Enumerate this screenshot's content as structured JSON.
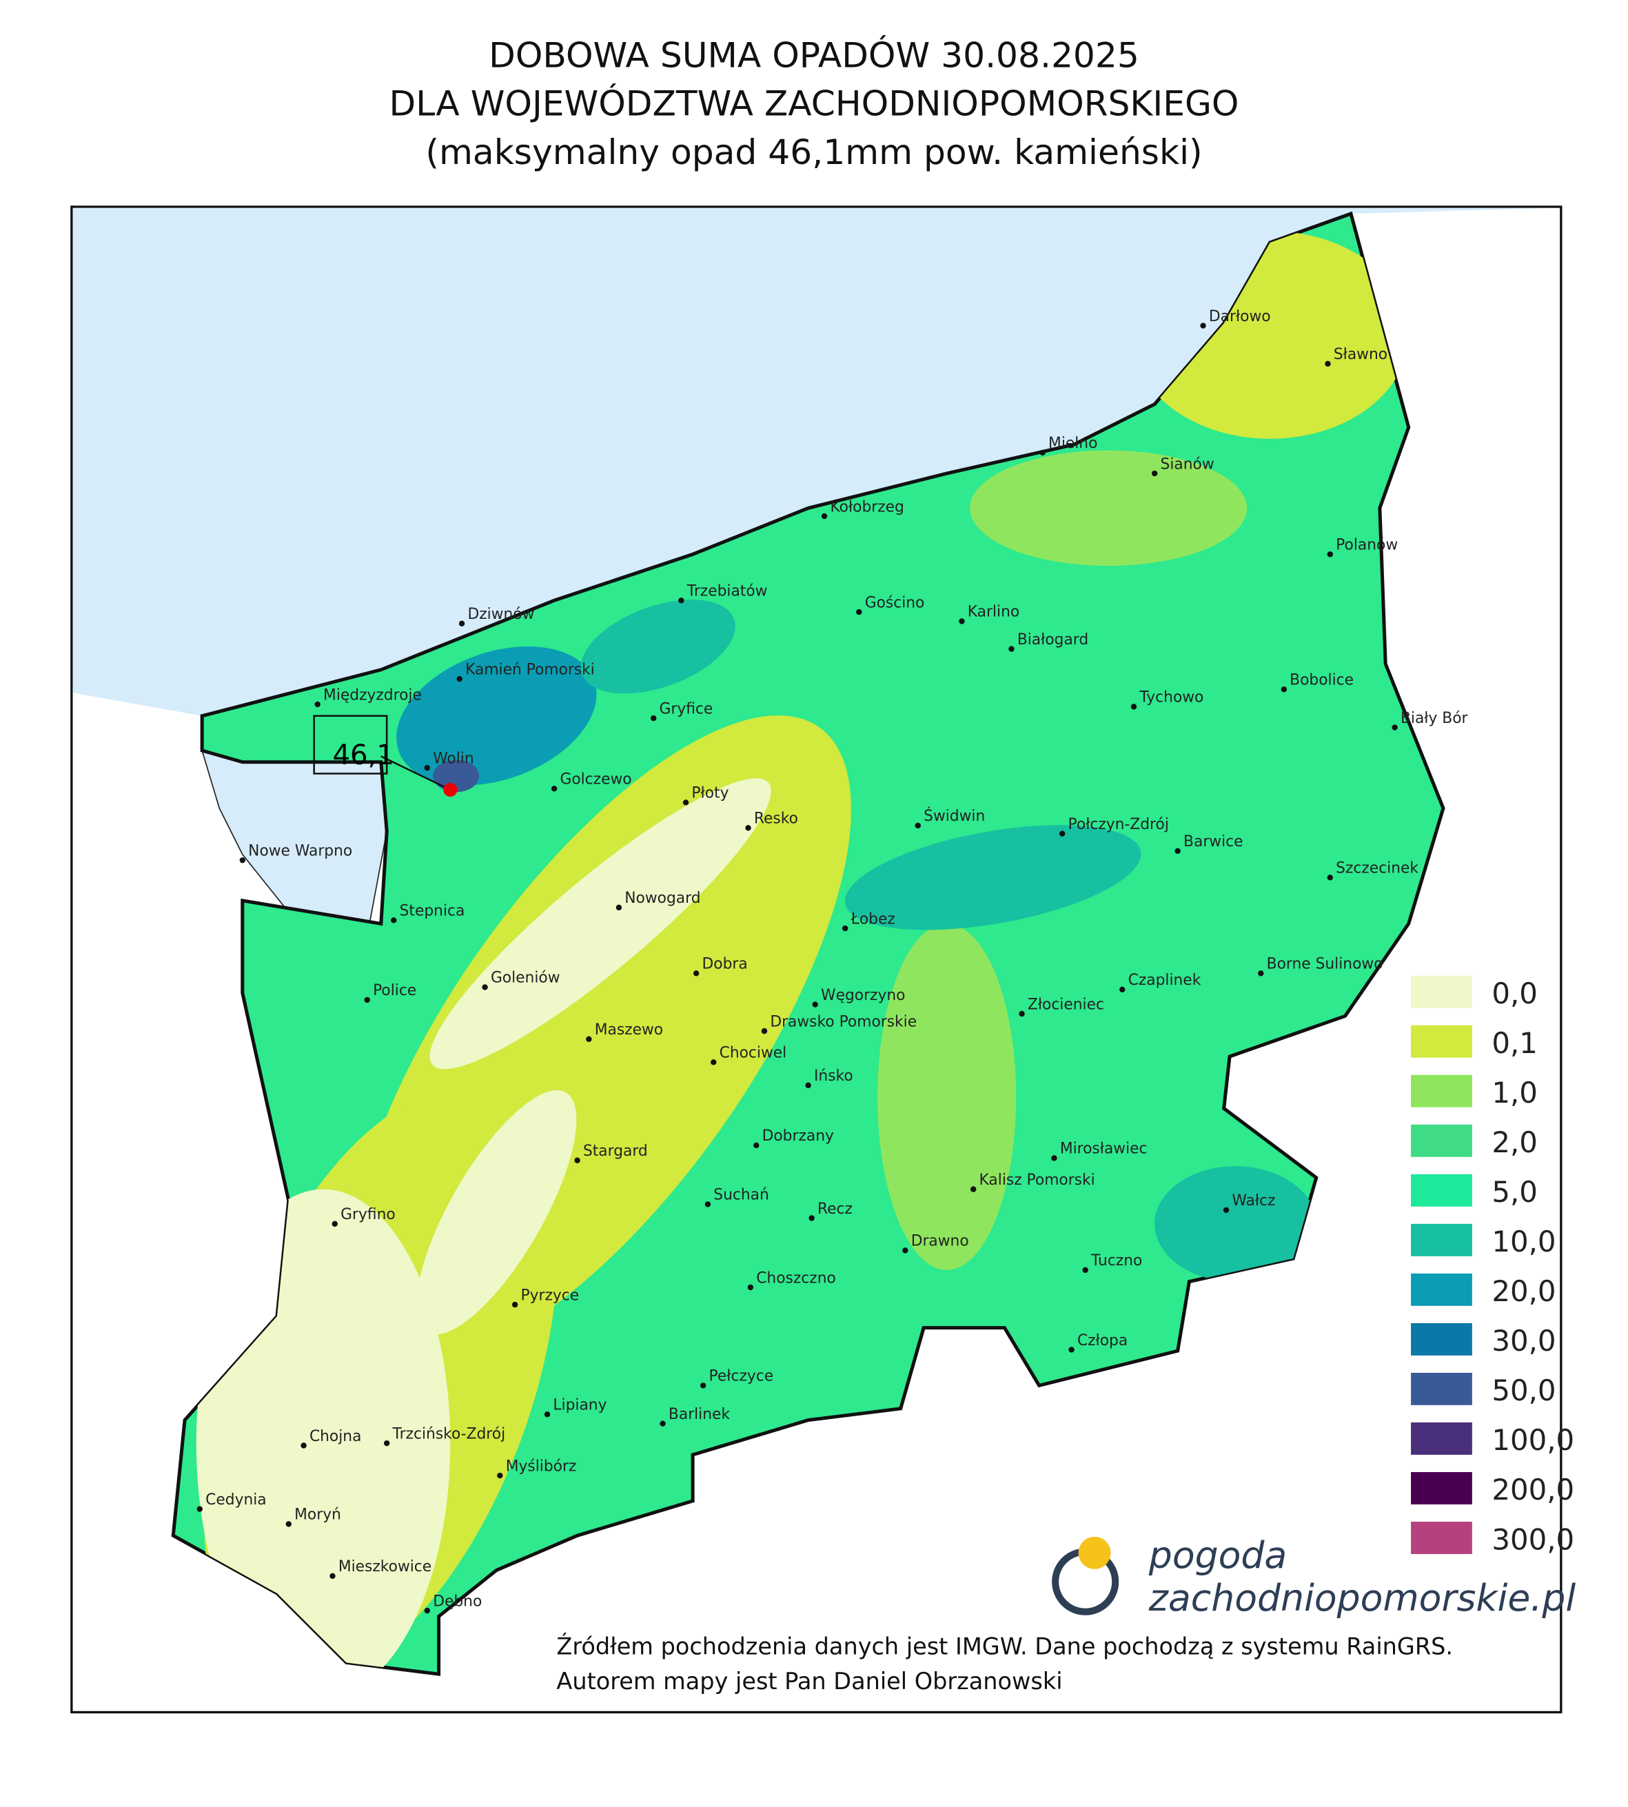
{
  "title": [
    "DOBOWA SUMA OPADÓW 30.08.2025",
    "DLA WOJEWÓDZTWA ZACHODNIOPOMORSKIEGO",
    "(maksymalny opad 46,1mm pow. kamieński)"
  ],
  "max_label": "46,1",
  "legend": [
    {
      "label": "0,0",
      "color": "#eef8c9"
    },
    {
      "label": "0,1",
      "color": "#d2e93e"
    },
    {
      "label": "1,0",
      "color": "#8fe65e"
    },
    {
      "label": "2,0",
      "color": "#3fdb85"
    },
    {
      "label": "5,0",
      "color": "#1ee89a"
    },
    {
      "label": "10,0",
      "color": "#17c0a0"
    },
    {
      "label": "20,0",
      "color": "#0a9db3"
    },
    {
      "label": "30,0",
      "color": "#0a78a8"
    },
    {
      "label": "50,0",
      "color": "#3a5a97"
    },
    {
      "label": "100,0",
      "color": "#4a2f7a"
    },
    {
      "label": "200,0",
      "color": "#4a0050"
    },
    {
      "label": "300,0",
      "color": "#b5427f"
    }
  ],
  "towns": [
    "Darłowo",
    "Sławno",
    "Mielno",
    "Sianów",
    "Kołobrzeg",
    "Polanów",
    "Trzebiatów",
    "Gościno",
    "Karlino",
    "Dziwnów",
    "Białogard",
    "Kamień Pomorski",
    "Bobolice",
    "Tychowo",
    "Gryfice",
    "Międzyzdroje",
    "Biały Bór",
    "Wolin",
    "Golczewo",
    "Płoty",
    "Resko",
    "Świdwin",
    "Połczyn-Zdrój",
    "Barwice",
    "Nowe Warpno",
    "Szczecinek",
    "Nowogard",
    "Stepnica",
    "Łobez",
    "Dobra",
    "Borne Sulinowo",
    "Czaplinek",
    "Goleniów",
    "Police",
    "Węgorzyno",
    "Złocieniec",
    "Drawsko Pomorskie",
    "Maszewo",
    "Chociwel",
    "Ińsko",
    "Dobrzany",
    "Stargard",
    "Mirosławiec",
    "Kalisz Pomorski",
    "Suchań",
    "Wałcz",
    "Gryfino",
    "Recz",
    "Drawno",
    "Tuczno",
    "Choszczno",
    "Pyrzyce",
    "Człopa",
    "Pełczyce",
    "Lipiany",
    "Barlinek",
    "Chojna",
    "Trzcińsko-Zdrój",
    "Myślibórz",
    "Cedynia",
    "Moryń",
    "Mieszkowice",
    "Dębno"
  ],
  "logo": [
    "pogoda",
    "zachodniopomorskie.pl"
  ],
  "source": [
    "Źródłem pochodzenia danych jest IMGW. Dane pochodzą z systemu RainGRS.",
    "Autorem mapy jest Pan Daniel Obrzanowski"
  ]
}
